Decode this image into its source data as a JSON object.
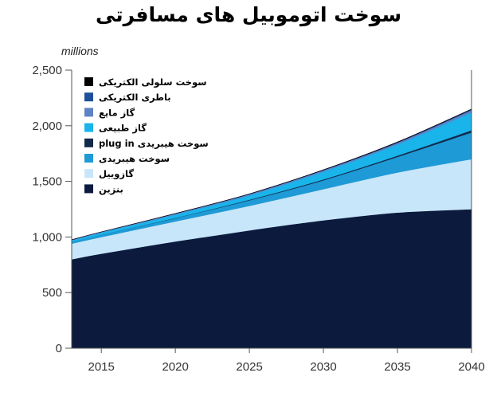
{
  "chart_data": {
    "type": "area",
    "title": "سوخت اتوموبیل های مسافرتی",
    "unit_label": "millions",
    "x": [
      2013,
      2015,
      2020,
      2025,
      2030,
      2035,
      2040
    ],
    "xticks": [
      2015,
      2020,
      2025,
      2030,
      2035,
      2040
    ],
    "yticks": [
      0,
      500,
      1000,
      1500,
      2000,
      2500
    ],
    "ytick_labels": [
      "0",
      "500",
      "1,000",
      "1,500",
      "2,000",
      "2,500"
    ],
    "ylim": [
      0,
      2500
    ],
    "xlim": [
      2013,
      2040
    ],
    "stacked": true,
    "legend_position": "top-left",
    "series": [
      {
        "name": "بنزین",
        "color": "#0b1a3d",
        "values": [
          800,
          850,
          960,
          1060,
          1150,
          1220,
          1250
        ]
      },
      {
        "name": "گازوییل",
        "color": "#c8e6f9",
        "values": [
          140,
          150,
          180,
          220,
          280,
          360,
          450
        ]
      },
      {
        "name": "سوخت  هیبریدی",
        "color": "#1e9ad6",
        "values": [
          15,
          20,
          30,
          50,
          80,
          140,
          240
        ]
      },
      {
        "name": "plug in سوخت هیبریدی",
        "color": "#13294b",
        "values": [
          0,
          0,
          2,
          5,
          8,
          12,
          20
        ]
      },
      {
        "name": "گاز طبیعی",
        "color": "#19b4ea",
        "values": [
          15,
          20,
          30,
          40,
          70,
          100,
          160
        ]
      },
      {
        "name": "گاز مایع",
        "color": "#5f82c4",
        "values": [
          5,
          6,
          8,
          10,
          12,
          15,
          20
        ]
      },
      {
        "name": "باطری الکتریکی",
        "color": "#1f4f9a",
        "values": [
          0,
          0,
          1,
          2,
          3,
          5,
          8
        ]
      },
      {
        "name": "سوخت سلولی الکتریکی",
        "color": "#000000",
        "values": [
          0,
          0,
          0,
          1,
          1,
          2,
          2
        ]
      }
    ]
  }
}
